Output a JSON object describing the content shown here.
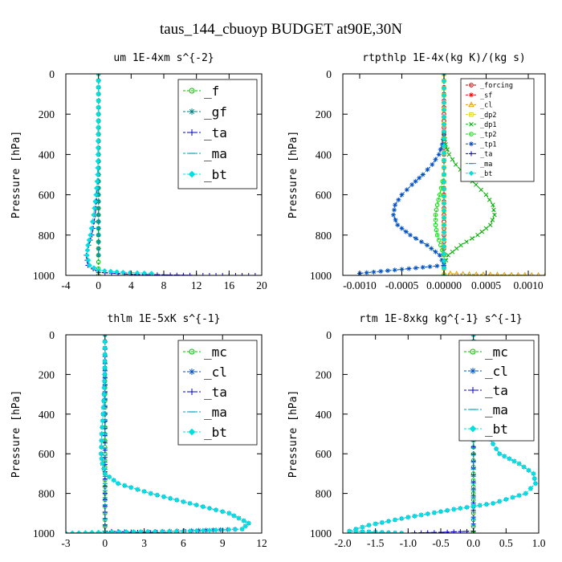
{
  "suptitle": "taus_144_cbuoyp  BUDGET at90E,30N",
  "chart_data": [
    {
      "type": "line",
      "title": "um  1E-4xm s^{-2}",
      "ylabel": "Pressure [hPa]",
      "xlim": [
        -4,
        20
      ],
      "ylim": [
        0,
        1000
      ],
      "y_inverted": true,
      "xticks": [
        "-4",
        "0",
        "4",
        "8",
        "12",
        "16",
        "20"
      ],
      "xtick_values": [
        -4,
        0,
        4,
        8,
        12,
        16,
        20
      ],
      "yticks": [
        "0",
        "200",
        "400",
        "600",
        "800",
        "1000"
      ],
      "ytick_values": [
        0,
        200,
        400,
        600,
        800,
        1000
      ],
      "legend_position": "top-right",
      "series": [
        {
          "name": "_f",
          "color": "#00c000",
          "marker": "circle",
          "x": [
            0,
            0,
            0,
            0,
            0,
            0,
            0,
            0,
            0,
            0,
            0
          ],
          "y": [
            0,
            100,
            200,
            300,
            400,
            500,
            600,
            700,
            800,
            900,
            1000
          ]
        },
        {
          "name": "_gf",
          "color": "#008080",
          "marker": "star",
          "x": [
            0,
            0,
            0,
            0,
            0,
            0,
            0,
            0,
            0,
            0
          ],
          "y": [
            0,
            100,
            200,
            300,
            400,
            500,
            600,
            700,
            800,
            900
          ]
        },
        {
          "name": "_ta",
          "color": "#0000c0",
          "marker": "plus",
          "x": [
            0,
            -0.02,
            -0.05,
            -0.1,
            -0.2,
            -0.4,
            -0.8,
            -1.2,
            -1.5,
            -1.3,
            0,
            4,
            12,
            20
          ],
          "y": [
            0,
            200,
            400,
            500,
            600,
            700,
            800,
            850,
            900,
            950,
            985,
            995,
            1000,
            1000
          ]
        },
        {
          "name": "_ma",
          "color": "#00a0c0",
          "marker": "dash",
          "x": [
            0,
            0,
            0,
            0,
            0,
            0,
            0,
            0,
            0,
            0
          ],
          "y": [
            0,
            100,
            200,
            300,
            400,
            500,
            600,
            700,
            800,
            900
          ]
        },
        {
          "name": "_bt",
          "color": "#00e0e0",
          "marker": "diamond",
          "x": [
            0,
            -0.02,
            -0.05,
            -0.1,
            -0.3,
            -0.6,
            -1.0,
            -1.3,
            -1.4,
            -1.1,
            0,
            3,
            6.5
          ],
          "y": [
            0,
            200,
            400,
            500,
            600,
            700,
            800,
            850,
            900,
            950,
            975,
            985,
            990
          ]
        }
      ]
    },
    {
      "type": "line",
      "title": "rtpthlp  1E-4x(kg K)/(kg s)",
      "ylabel": "Pressure [hPa]",
      "xlim": [
        -0.0012,
        0.0012
      ],
      "ylim": [
        0,
        1000
      ],
      "y_inverted": true,
      "xticks": [
        "-0.0010",
        "-0.0005",
        "0.00000",
        "0.0005",
        "0.0010"
      ],
      "xtick_values": [
        -0.001,
        -0.0005,
        0,
        0.0005,
        0.001
      ],
      "yticks": [
        "0",
        "200",
        "400",
        "600",
        "800",
        "1000"
      ],
      "ytick_values": [
        0,
        200,
        400,
        600,
        800,
        1000
      ],
      "legend_position": "top-right",
      "series": [
        {
          "name": "_forcing",
          "color": "#c00000",
          "marker": "circle",
          "x": [
            0,
            0,
            0,
            0,
            0,
            0,
            0,
            0,
            0,
            0,
            0
          ],
          "y": [
            0,
            100,
            200,
            300,
            400,
            500,
            600,
            700,
            800,
            900,
            1000
          ]
        },
        {
          "name": "_sf",
          "color": "#ff0000",
          "marker": "star",
          "x": [
            0,
            0
          ],
          "y": [
            0,
            1000
          ]
        },
        {
          "name": "_cl",
          "color": "#e0a000",
          "marker": "triangle",
          "x": [
            0,
            0.0003,
            0.0008,
            0.0012
          ],
          "y": [
            990,
            995,
            998,
            1000
          ]
        },
        {
          "name": "_dp2",
          "color": "#e0d000",
          "marker": "square",
          "x": [
            0,
            0
          ],
          "y": [
            0,
            1000
          ]
        },
        {
          "name": "_dp1",
          "color": "#00b000",
          "marker": "cross",
          "x": [
            0,
            2e-05,
            6e-05,
            0.00014,
            0.00025,
            0.00038,
            0.0005,
            0.00058,
            0.0006,
            0.00055,
            0.0004,
            0.0002,
            5e-05,
            0
          ],
          "y": [
            300,
            350,
            400,
            450,
            500,
            550,
            600,
            650,
            700,
            750,
            800,
            850,
            900,
            950
          ]
        },
        {
          "name": "_tp2",
          "color": "#00e000",
          "marker": "circle",
          "x": [
            0,
            -5e-05,
            -8e-05,
            -0.0001,
            -0.0001,
            -8e-05,
            -4e-05,
            0
          ],
          "y": [
            500,
            600,
            650,
            700,
            750,
            800,
            850,
            900
          ]
        },
        {
          "name": "_tp1",
          "color": "#0050c0",
          "marker": "star",
          "x": [
            0,
            -2e-05,
            -6e-05,
            -0.00014,
            -0.00025,
            -0.00038,
            -0.0005,
            -0.00058,
            -0.0006,
            -0.00055,
            -0.0004,
            -0.0002,
            -5e-05,
            0,
            -0.001
          ],
          "y": [
            300,
            350,
            400,
            450,
            500,
            550,
            600,
            650,
            700,
            750,
            800,
            850,
            900,
            950,
            990
          ]
        },
        {
          "name": "_ta",
          "color": "#0000c0",
          "marker": "plus",
          "x": [
            0,
            0
          ],
          "y": [
            0,
            1000
          ]
        },
        {
          "name": "_ma",
          "color": "#00a0c0",
          "marker": "dash",
          "x": [
            0,
            0
          ],
          "y": [
            0,
            1000
          ]
        },
        {
          "name": "_bt",
          "color": "#00e0e0",
          "marker": "diamond",
          "x": [
            0,
            0
          ],
          "y": [
            0,
            1000
          ]
        }
      ]
    },
    {
      "type": "line",
      "title": "thlm  1E-5xK s^{-1}",
      "ylabel": "Pressure [hPa]",
      "xlim": [
        -3,
        12
      ],
      "ylim": [
        0,
        1000
      ],
      "y_inverted": true,
      "xticks": [
        "-3",
        "0",
        "3",
        "6",
        "9",
        "12"
      ],
      "xtick_values": [
        -3,
        0,
        3,
        6,
        9,
        12
      ],
      "yticks": [
        "0",
        "200",
        "400",
        "600",
        "800",
        "1000"
      ],
      "ytick_values": [
        0,
        200,
        400,
        600,
        800,
        1000
      ],
      "legend_position": "top-right",
      "series": [
        {
          "name": "_mc",
          "color": "#00c000",
          "marker": "circle",
          "x": [
            0,
            0,
            0,
            0,
            0,
            0,
            0,
            0,
            0,
            0,
            0
          ],
          "y": [
            0,
            100,
            200,
            300,
            400,
            500,
            600,
            700,
            800,
            900,
            1000
          ]
        },
        {
          "name": "_cl",
          "color": "#0050c0",
          "marker": "star",
          "x": [
            0,
            -0.03,
            -0.08,
            -0.15,
            -0.25,
            -0.3,
            -0.2,
            0,
            1.0,
            3.5,
            6.5,
            9.5,
            11.0,
            10.5,
            0
          ],
          "y": [
            0,
            200,
            300,
            400,
            500,
            600,
            650,
            700,
            750,
            800,
            850,
            900,
            950,
            980,
            1000
          ]
        },
        {
          "name": "_ta",
          "color": "#0000c0",
          "marker": "plus",
          "x": [
            0,
            0,
            0,
            3,
            6
          ],
          "y": [
            0,
            800,
            990,
            997,
            1000
          ]
        },
        {
          "name": "_ma",
          "color": "#00a0c0",
          "marker": "dash",
          "x": [
            0,
            0
          ],
          "y": [
            0,
            1000
          ]
        },
        {
          "name": "_bt",
          "color": "#00e0e0",
          "marker": "diamond",
          "x": [
            0,
            -0.03,
            -0.08,
            -0.15,
            -0.25,
            -0.3,
            -0.2,
            0,
            1.0,
            3.5,
            6.5,
            9.5,
            11.0,
            10.5,
            6,
            0,
            -3
          ],
          "y": [
            0,
            200,
            300,
            400,
            500,
            600,
            650,
            700,
            750,
            800,
            850,
            900,
            950,
            980,
            990,
            995,
            1000
          ]
        }
      ]
    },
    {
      "type": "line",
      "title": "rtm  1E-8xkg kg^{-1} s^{-1}",
      "ylabel": "Pressure [hPa]",
      "xlim": [
        -2.0,
        1.0
      ],
      "ylim": [
        0,
        1000
      ],
      "y_inverted": true,
      "xticks": [
        "-2.0",
        "-1.5",
        "-1.0",
        "-0.5",
        "0.0",
        "0.5",
        "1.0"
      ],
      "xtick_values": [
        -2.0,
        -1.5,
        -1.0,
        -0.5,
        0.0,
        0.5,
        1.0
      ],
      "yticks": [
        "0",
        "200",
        "400",
        "600",
        "800",
        "1000"
      ],
      "ytick_values": [
        0,
        200,
        400,
        600,
        800,
        1000
      ],
      "legend_position": "top-center",
      "series": [
        {
          "name": "_mc",
          "color": "#00c000",
          "marker": "circle",
          "x": [
            0,
            0,
            0,
            0,
            0,
            0,
            0,
            0,
            0,
            0,
            0
          ],
          "y": [
            0,
            100,
            200,
            300,
            400,
            500,
            600,
            700,
            800,
            900,
            1000
          ]
        },
        {
          "name": "_cl",
          "color": "#0050c0",
          "marker": "star",
          "x": [
            0,
            0.02,
            0.05,
            0.08,
            0.12,
            0.2,
            0.4,
            0.7,
            0.92,
            0.95,
            0.8,
            0.3,
            -0.3,
            -1.0,
            -1.6,
            -1.9,
            -1.1
          ],
          "y": [
            0,
            100,
            200,
            300,
            400,
            500,
            600,
            650,
            700,
            750,
            800,
            850,
            880,
            920,
            960,
            990,
            1000
          ]
        },
        {
          "name": "_ta",
          "color": "#0000c0",
          "marker": "plus",
          "x": [
            0,
            0,
            -0.5,
            -1.0
          ],
          "y": [
            0,
            990,
            996,
            1000
          ]
        },
        {
          "name": "_ma",
          "color": "#00a0c0",
          "marker": "dash",
          "x": [
            0,
            0
          ],
          "y": [
            0,
            1000
          ]
        },
        {
          "name": "_bt",
          "color": "#00e0e0",
          "marker": "diamond",
          "x": [
            0,
            0.02,
            0.05,
            0.08,
            0.12,
            0.2,
            0.4,
            0.7,
            0.92,
            0.95,
            0.8,
            0.3,
            -0.3,
            -1.0,
            -1.6,
            -1.9,
            -1.1
          ],
          "y": [
            0,
            100,
            200,
            300,
            400,
            500,
            600,
            650,
            700,
            750,
            800,
            850,
            880,
            920,
            960,
            990,
            1000
          ]
        }
      ]
    }
  ]
}
